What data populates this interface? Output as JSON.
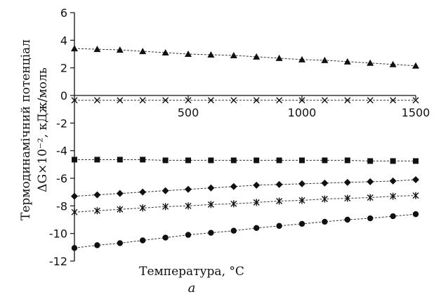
{
  "chart_data": {
    "type": "line",
    "xlabel": "Температура, °С",
    "ylabel_line1": "Термодинамічний потенціал",
    "ylabel_line2": "ΔG×10⁻², кДж/моль",
    "caption": "а",
    "xlim": [
      0,
      1500
    ],
    "ylim": [
      -12,
      6
    ],
    "y_ticks": [
      6,
      4,
      2,
      0,
      -2,
      -4,
      -6,
      -8,
      -10,
      -12
    ],
    "y_tick_labels": [
      "6",
      "4",
      "2",
      "0",
      "-2",
      "-4",
      "-6",
      "-8",
      "-10",
      "-12"
    ],
    "x_ticks": [
      500,
      1000,
      1500
    ],
    "x_tick_labels": [
      "500",
      "1000",
      "1500"
    ],
    "x": [
      0,
      100,
      200,
      300,
      400,
      500,
      600,
      700,
      800,
      900,
      1000,
      1100,
      1200,
      1300,
      1400,
      1500
    ],
    "series": [
      {
        "marker": "triangle",
        "values": [
          3.4,
          3.35,
          3.3,
          3.2,
          3.1,
          3.0,
          2.95,
          2.9,
          2.8,
          2.7,
          2.6,
          2.55,
          2.45,
          2.35,
          2.25,
          2.15
        ]
      },
      {
        "marker": "x",
        "values": [
          -0.35,
          -0.35,
          -0.35,
          -0.35,
          -0.35,
          -0.35,
          -0.35,
          -0.35,
          -0.35,
          -0.35,
          -0.35,
          -0.35,
          -0.35,
          -0.35,
          -0.35,
          -0.35
        ]
      },
      {
        "marker": "square",
        "values": [
          -4.65,
          -4.65,
          -4.65,
          -4.65,
          -4.7,
          -4.7,
          -4.7,
          -4.7,
          -4.7,
          -4.7,
          -4.7,
          -4.7,
          -4.7,
          -4.75,
          -4.75,
          -4.75
        ]
      },
      {
        "marker": "diamond",
        "values": [
          -7.3,
          -7.2,
          -7.1,
          -7.0,
          -6.9,
          -6.8,
          -6.7,
          -6.6,
          -6.5,
          -6.45,
          -6.4,
          -6.35,
          -6.3,
          -6.25,
          -6.2,
          -6.1
        ]
      },
      {
        "marker": "star",
        "values": [
          -8.45,
          -8.35,
          -8.25,
          -8.15,
          -8.05,
          -8.0,
          -7.9,
          -7.85,
          -7.75,
          -7.65,
          -7.6,
          -7.5,
          -7.45,
          -7.4,
          -7.3,
          -7.25
        ]
      },
      {
        "marker": "circle",
        "values": [
          -11.05,
          -10.85,
          -10.7,
          -10.5,
          -10.3,
          -10.1,
          -9.95,
          -9.8,
          -9.6,
          -9.45,
          -9.3,
          -9.15,
          -9.0,
          -8.9,
          -8.75,
          -8.6
        ]
      }
    ]
  }
}
